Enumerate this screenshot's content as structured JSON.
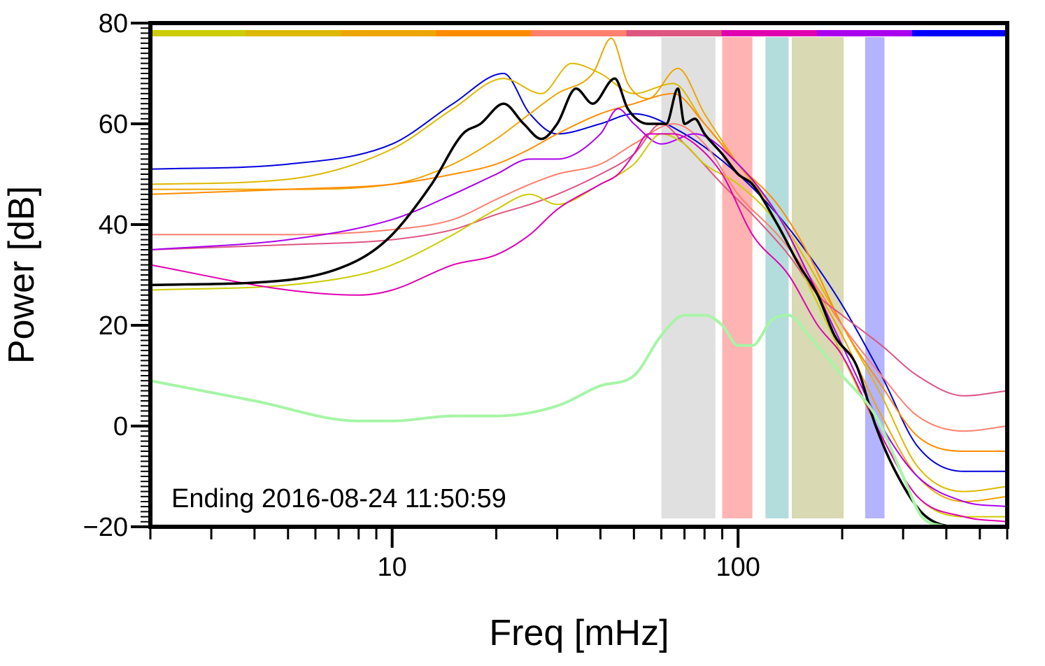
{
  "chart_data": {
    "type": "line",
    "title": "",
    "xlabel": "Freq [mHz]",
    "ylabel": "Power [dB]",
    "xscale": "log",
    "xlim": [
      2,
      600
    ],
    "ylim": [
      -20,
      80
    ],
    "grid": false,
    "legend": "none",
    "annotation": "Ending 2016-08-24 11:50:59",
    "x_ticks": [
      {
        "value": 10,
        "label": "10"
      },
      {
        "value": 100,
        "label": "100"
      }
    ],
    "y_ticks": [
      {
        "value": -20,
        "label": "−20"
      },
      {
        "value": 0,
        "label": "0"
      },
      {
        "value": 20,
        "label": "20"
      },
      {
        "value": 40,
        "label": "40"
      },
      {
        "value": 60,
        "label": "60"
      },
      {
        "value": 80,
        "label": "80"
      }
    ],
    "bands": [
      {
        "x0": 60,
        "x1": 86,
        "color": "#e0e0e0"
      },
      {
        "x0": 90,
        "x1": 110,
        "color": "#ffb3b3"
      },
      {
        "x0": 120,
        "x1": 140,
        "color": "#b3dcdc"
      },
      {
        "x0": 143,
        "x1": 202,
        "color": "#d9d9b3"
      },
      {
        "x0": 233,
        "x1": 265,
        "color": "#b3b3ff"
      }
    ],
    "color_strip": [
      "#cccc00",
      "#ddb800",
      "#eea500",
      "#ff8c00",
      "#ff7f6e",
      "#dd5580",
      "#e000b0",
      "#aa00ee",
      "#0000ff"
    ],
    "series": [
      {
        "color": "#0000dd",
        "width": 2,
        "points": [
          [
            2,
            51
          ],
          [
            5,
            52
          ],
          [
            10,
            56
          ],
          [
            15,
            64
          ],
          [
            21,
            70
          ],
          [
            25,
            62
          ],
          [
            30,
            58
          ],
          [
            40,
            60
          ],
          [
            50,
            62
          ],
          [
            70,
            58
          ],
          [
            100,
            50
          ],
          [
            130,
            42
          ],
          [
            160,
            34
          ],
          [
            200,
            24
          ],
          [
            260,
            10
          ],
          [
            330,
            -4
          ],
          [
            450,
            -9
          ],
          [
            600,
            -9
          ]
        ]
      },
      {
        "color": "#ddb800",
        "width": 2,
        "points": [
          [
            2,
            48
          ],
          [
            5,
            49
          ],
          [
            10,
            55
          ],
          [
            15,
            63
          ],
          [
            21,
            69
          ],
          [
            27,
            66
          ],
          [
            33,
            72
          ],
          [
            40,
            70
          ],
          [
            50,
            66
          ],
          [
            65,
            68
          ],
          [
            80,
            60
          ],
          [
            100,
            52
          ],
          [
            130,
            42
          ],
          [
            160,
            32
          ],
          [
            200,
            20
          ],
          [
            260,
            6
          ],
          [
            330,
            -8
          ],
          [
            450,
            -13
          ],
          [
            600,
            -12
          ]
        ]
      },
      {
        "color": "#eea500",
        "width": 2,
        "points": [
          [
            2,
            47
          ],
          [
            5,
            47
          ],
          [
            10,
            48
          ],
          [
            15,
            52
          ],
          [
            20,
            57
          ],
          [
            25,
            62
          ],
          [
            30,
            66
          ],
          [
            38,
            70
          ],
          [
            43,
            77
          ],
          [
            48,
            68
          ],
          [
            55,
            65
          ],
          [
            67,
            71
          ],
          [
            80,
            62
          ],
          [
            100,
            52
          ],
          [
            130,
            42
          ],
          [
            160,
            30
          ],
          [
            200,
            18
          ],
          [
            260,
            2
          ],
          [
            330,
            -10
          ],
          [
            450,
            -15
          ],
          [
            600,
            -14
          ]
        ]
      },
      {
        "color": "#ff8c00",
        "width": 2,
        "points": [
          [
            2,
            46
          ],
          [
            5,
            47
          ],
          [
            10,
            48
          ],
          [
            15,
            50
          ],
          [
            20,
            52
          ],
          [
            25,
            55
          ],
          [
            30,
            58
          ],
          [
            40,
            62
          ],
          [
            50,
            64
          ],
          [
            65,
            66
          ],
          [
            80,
            60
          ],
          [
            100,
            52
          ],
          [
            130,
            44
          ],
          [
            160,
            34
          ],
          [
            200,
            20
          ],
          [
            260,
            8
          ],
          [
            330,
            -2
          ],
          [
            450,
            -5
          ],
          [
            600,
            -5
          ]
        ]
      },
      {
        "color": "#ff7f6e",
        "width": 2,
        "points": [
          [
            2,
            38
          ],
          [
            5,
            38
          ],
          [
            10,
            39
          ],
          [
            15,
            41
          ],
          [
            20,
            45
          ],
          [
            25,
            48
          ],
          [
            30,
            50
          ],
          [
            40,
            52
          ],
          [
            50,
            56
          ],
          [
            65,
            60
          ],
          [
            80,
            56
          ],
          [
            100,
            46
          ],
          [
            130,
            38
          ],
          [
            160,
            30
          ],
          [
            200,
            20
          ],
          [
            260,
            10
          ],
          [
            330,
            2
          ],
          [
            450,
            -1
          ],
          [
            600,
            0
          ]
        ]
      },
      {
        "color": "#dd5580",
        "width": 2,
        "points": [
          [
            2,
            35
          ],
          [
            5,
            36
          ],
          [
            10,
            37
          ],
          [
            15,
            39
          ],
          [
            20,
            42
          ],
          [
            25,
            44
          ],
          [
            30,
            46
          ],
          [
            40,
            50
          ],
          [
            50,
            54
          ],
          [
            60,
            60
          ],
          [
            70,
            56
          ],
          [
            90,
            48
          ],
          [
            110,
            42
          ],
          [
            140,
            34
          ],
          [
            170,
            26
          ],
          [
            200,
            22
          ],
          [
            260,
            16
          ],
          [
            330,
            10
          ],
          [
            450,
            6
          ],
          [
            600,
            7
          ]
        ]
      },
      {
        "color": "#aa00ee",
        "width": 2,
        "points": [
          [
            2,
            35
          ],
          [
            5,
            37
          ],
          [
            10,
            41
          ],
          [
            15,
            46
          ],
          [
            20,
            50
          ],
          [
            25,
            53
          ],
          [
            30,
            53
          ],
          [
            40,
            58
          ],
          [
            45,
            63
          ],
          [
            50,
            60
          ],
          [
            60,
            56
          ],
          [
            75,
            58
          ],
          [
            100,
            52
          ],
          [
            130,
            42
          ],
          [
            160,
            30
          ],
          [
            200,
            16
          ],
          [
            260,
            0
          ],
          [
            330,
            -10
          ],
          [
            450,
            -15
          ],
          [
            600,
            -16
          ]
        ]
      },
      {
        "color": "#cccc00",
        "width": 2,
        "points": [
          [
            2,
            27
          ],
          [
            5,
            28
          ],
          [
            8,
            30
          ],
          [
            10,
            32
          ],
          [
            15,
            38
          ],
          [
            20,
            43
          ],
          [
            25,
            46
          ],
          [
            30,
            44
          ],
          [
            40,
            48
          ],
          [
            50,
            52
          ],
          [
            60,
            58
          ],
          [
            70,
            56
          ],
          [
            80,
            52
          ],
          [
            100,
            48
          ],
          [
            130,
            40
          ],
          [
            160,
            28
          ],
          [
            200,
            14
          ],
          [
            260,
            -2
          ],
          [
            330,
            -14
          ],
          [
            450,
            -18
          ],
          [
            600,
            -18
          ]
        ]
      },
      {
        "color": "#e000b0",
        "width": 2,
        "points": [
          [
            2,
            32
          ],
          [
            5,
            27
          ],
          [
            8,
            26
          ],
          [
            10,
            27
          ],
          [
            15,
            32
          ],
          [
            20,
            34
          ],
          [
            25,
            38
          ],
          [
            30,
            43
          ],
          [
            40,
            48
          ],
          [
            45,
            50
          ],
          [
            50,
            54
          ],
          [
            55,
            58
          ],
          [
            65,
            58
          ],
          [
            75,
            56
          ],
          [
            90,
            50
          ],
          [
            110,
            38
          ],
          [
            140,
            30
          ],
          [
            170,
            20
          ],
          [
            200,
            14
          ],
          [
            260,
            -2
          ],
          [
            330,
            -14
          ],
          [
            450,
            -18
          ],
          [
            600,
            -19
          ]
        ]
      },
      {
        "color": "#000000",
        "width": 3.5,
        "points": [
          [
            2,
            28
          ],
          [
            5,
            29
          ],
          [
            8,
            33
          ],
          [
            10,
            38
          ],
          [
            13,
            48
          ],
          [
            16,
            58
          ],
          [
            18,
            60
          ],
          [
            21,
            64
          ],
          [
            24,
            60
          ],
          [
            27,
            57
          ],
          [
            30,
            60
          ],
          [
            34,
            67
          ],
          [
            38,
            64
          ],
          [
            44,
            69
          ],
          [
            48,
            63
          ],
          [
            55,
            60
          ],
          [
            62,
            60
          ],
          [
            67,
            67
          ],
          [
            70,
            60
          ],
          [
            75,
            61
          ],
          [
            80,
            58
          ],
          [
            90,
            54
          ],
          [
            100,
            50
          ],
          [
            110,
            48
          ],
          [
            130,
            40
          ],
          [
            150,
            32
          ],
          [
            170,
            26
          ],
          [
            190,
            18
          ],
          [
            220,
            12
          ],
          [
            250,
            0
          ],
          [
            290,
            -10
          ],
          [
            350,
            -18
          ],
          [
            450,
            -20
          ],
          [
            600,
            -20
          ]
        ]
      },
      {
        "color": "#a6f5a6",
        "width": 4,
        "points": [
          [
            2,
            9
          ],
          [
            4,
            5
          ],
          [
            8,
            1
          ],
          [
            10,
            1
          ],
          [
            15,
            2
          ],
          [
            20,
            2
          ],
          [
            30,
            4
          ],
          [
            40,
            8
          ],
          [
            50,
            10
          ],
          [
            60,
            18
          ],
          [
            70,
            22
          ],
          [
            80,
            22
          ],
          [
            90,
            20
          ],
          [
            100,
            16
          ],
          [
            110,
            16
          ],
          [
            125,
            21
          ],
          [
            140,
            22
          ],
          [
            160,
            18
          ],
          [
            200,
            10
          ],
          [
            250,
            2
          ],
          [
            300,
            -10
          ],
          [
            340,
            -18
          ],
          [
            400,
            -20
          ]
        ]
      }
    ]
  }
}
